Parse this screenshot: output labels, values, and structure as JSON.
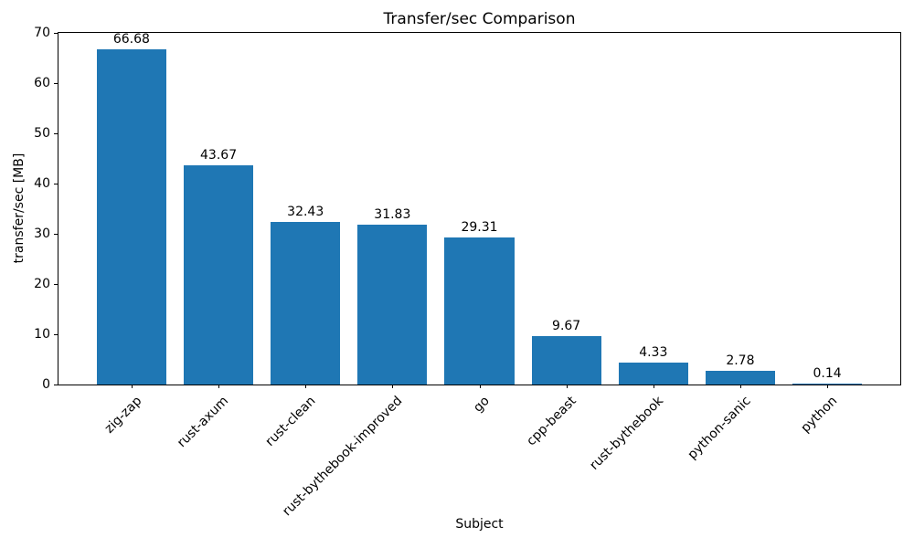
{
  "chart_data": {
    "type": "bar",
    "title": "Transfer/sec Comparison",
    "xlabel": "Subject",
    "ylabel": "transfer/sec [MB]",
    "categories": [
      "zig-zap",
      "rust-axum",
      "rust-clean",
      "rust-bythebook-improved",
      "go",
      "cpp-beast",
      "rust-bythebook",
      "python-sanic",
      "python"
    ],
    "values": [
      66.68,
      43.67,
      32.43,
      31.83,
      29.31,
      9.67,
      4.33,
      2.78,
      0.14
    ],
    "value_labels": [
      "66.68",
      "43.67",
      "32.43",
      "31.83",
      "29.31",
      "9.67",
      "4.33",
      "2.78",
      "0.14"
    ],
    "ylim": [
      0,
      70
    ],
    "yticks": [
      0,
      10,
      20,
      30,
      40,
      50,
      60,
      70
    ],
    "bar_color": "#1f77b4",
    "grid": false,
    "legend": "none",
    "x_tick_rotation_deg": 45
  }
}
